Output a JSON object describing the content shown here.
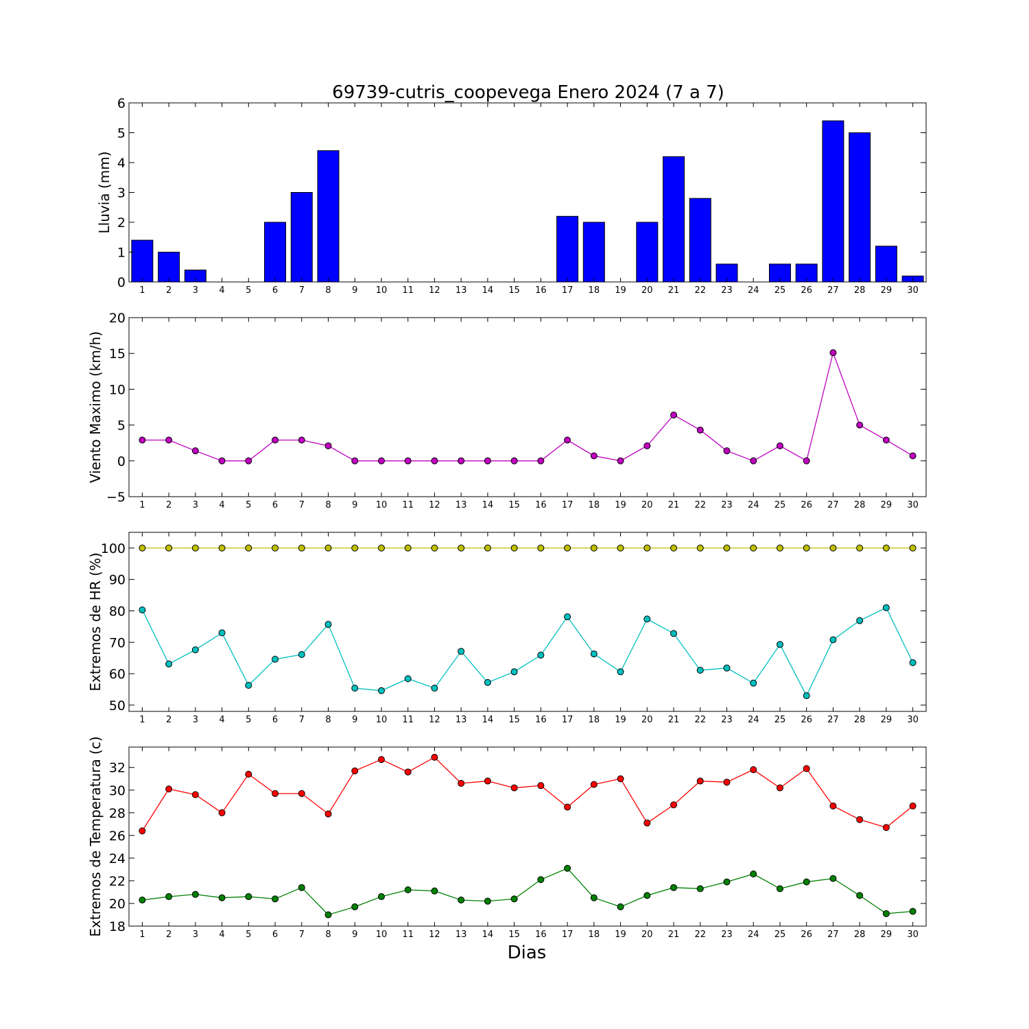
{
  "figure": {
    "title": "69739-cutris_coopevega Enero 2024  (7 a 7)",
    "xlabel": "Dias"
  },
  "chart_data": [
    {
      "type": "bar",
      "ylabel": "Lluvia (mm)",
      "ylim": [
        0,
        6
      ],
      "yticks": [
        0,
        1,
        2,
        3,
        4,
        5,
        6
      ],
      "categories": [
        1,
        2,
        3,
        4,
        5,
        6,
        7,
        8,
        9,
        10,
        11,
        12,
        13,
        14,
        15,
        16,
        17,
        18,
        19,
        20,
        21,
        22,
        23,
        24,
        25,
        26,
        27,
        28,
        29,
        30
      ],
      "series": [
        {
          "color": "#0000ff",
          "values": [
            1.4,
            1.0,
            0.4,
            0,
            0,
            2.0,
            3.0,
            4.4,
            0,
            0,
            0,
            0,
            0,
            0,
            0,
            0,
            2.2,
            2.0,
            0,
            2.0,
            4.2,
            2.8,
            0.6,
            0,
            0.6,
            0.6,
            5.4,
            5.0,
            1.2,
            0.2
          ]
        }
      ]
    },
    {
      "type": "line",
      "ylabel": "Viento Maximo (km/h)",
      "ylim": [
        -5,
        20
      ],
      "yticks": [
        -5,
        0,
        5,
        10,
        15,
        20
      ],
      "ytick_labels": [
        "−5",
        "0",
        "5",
        "10",
        "15",
        "20"
      ],
      "x": [
        1,
        2,
        3,
        4,
        5,
        6,
        7,
        8,
        9,
        10,
        11,
        12,
        13,
        14,
        15,
        16,
        17,
        18,
        19,
        20,
        21,
        22,
        23,
        24,
        25,
        26,
        27,
        28,
        29,
        30
      ],
      "series": [
        {
          "color": "#bf00bf",
          "values": [
            2.9,
            2.9,
            1.4,
            0,
            0,
            2.9,
            2.9,
            2.1,
            0,
            0,
            0,
            0,
            0,
            0,
            0,
            0,
            2.9,
            0.7,
            0,
            2.1,
            6.4,
            4.3,
            1.4,
            0,
            2.1,
            0,
            15.1,
            5.0,
            2.9,
            0.7
          ]
        }
      ]
    },
    {
      "type": "line",
      "ylabel": "Extremos de HR (%)",
      "ylim": [
        48,
        105
      ],
      "yticks": [
        50,
        60,
        70,
        80,
        90,
        100
      ],
      "x": [
        1,
        2,
        3,
        4,
        5,
        6,
        7,
        8,
        9,
        10,
        11,
        12,
        13,
        14,
        15,
        16,
        17,
        18,
        19,
        20,
        21,
        22,
        23,
        24,
        25,
        26,
        27,
        28,
        29,
        30
      ],
      "series": [
        {
          "color": "#bfbf00",
          "values": [
            100,
            100,
            100,
            100,
            100,
            100,
            100,
            100,
            100,
            100,
            100,
            100,
            100,
            100,
            100,
            100,
            100,
            100,
            100,
            100,
            100,
            100,
            100,
            100,
            100,
            100,
            100,
            100,
            100,
            100
          ]
        },
        {
          "color": "#00bfbf",
          "values": [
            80.3,
            63.1,
            67.6,
            73.0,
            56.3,
            64.6,
            66.1,
            75.7,
            55.4,
            54.6,
            58.4,
            55.4,
            67.1,
            57.2,
            60.6,
            65.9,
            78.1,
            66.3,
            60.6,
            77.4,
            72.8,
            61.1,
            61.8,
            57.0,
            69.3,
            53.0,
            70.8,
            76.9,
            81.0,
            63.5
          ]
        }
      ]
    },
    {
      "type": "line",
      "ylabel": "Extremos de Temperatura (c)",
      "ylim": [
        18,
        33.8
      ],
      "yticks": [
        18,
        20,
        22,
        24,
        26,
        28,
        30,
        32
      ],
      "x": [
        1,
        2,
        3,
        4,
        5,
        6,
        7,
        8,
        9,
        10,
        11,
        12,
        13,
        14,
        15,
        16,
        17,
        18,
        19,
        20,
        21,
        22,
        23,
        24,
        25,
        26,
        27,
        28,
        29,
        30
      ],
      "series": [
        {
          "color": "#ff0000",
          "values": [
            26.4,
            30.1,
            29.6,
            28.0,
            31.4,
            29.7,
            29.7,
            27.9,
            31.7,
            32.7,
            31.6,
            32.9,
            30.6,
            30.8,
            30.2,
            30.4,
            28.5,
            30.5,
            31.0,
            27.1,
            28.7,
            30.8,
            30.7,
            31.8,
            30.2,
            31.9,
            28.6,
            27.4,
            26.7,
            28.6
          ]
        },
        {
          "color": "#008000",
          "values": [
            20.3,
            20.6,
            20.8,
            20.5,
            20.6,
            20.4,
            21.4,
            19.0,
            19.7,
            20.6,
            21.2,
            21.1,
            20.3,
            20.2,
            20.4,
            22.1,
            23.1,
            20.5,
            19.7,
            20.7,
            21.4,
            21.3,
            21.9,
            22.6,
            21.3,
            21.9,
            22.2,
            20.7,
            19.1,
            19.3
          ]
        }
      ]
    }
  ]
}
